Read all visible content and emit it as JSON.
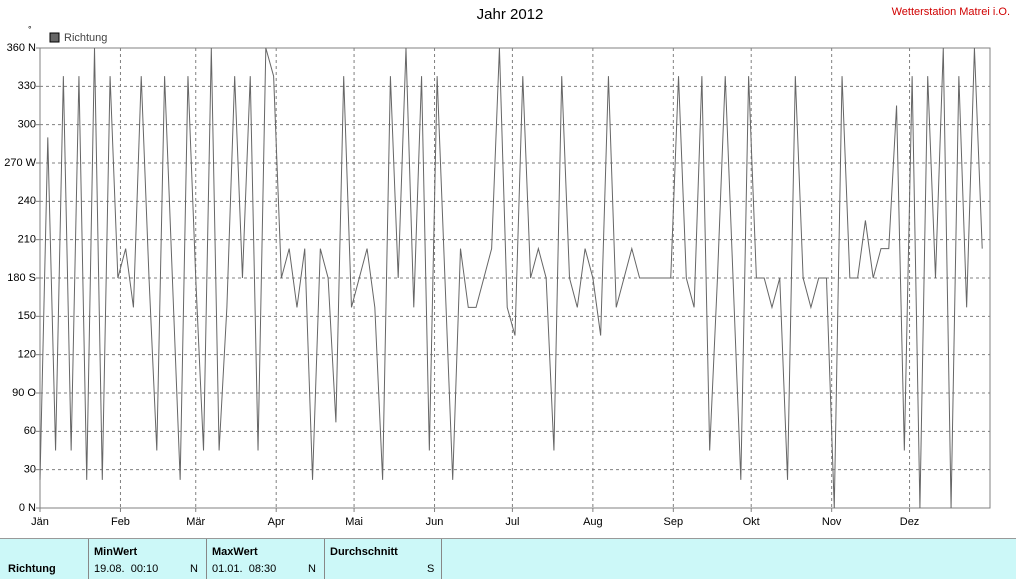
{
  "chart_data": {
    "type": "line",
    "title": "Jahr 2012",
    "station": "Wetterstation Matrei i.O.",
    "y_unit": "°",
    "legend": "top-left",
    "grid": true,
    "xlim": [
      0,
      366
    ],
    "xticks": [
      {
        "value": 0,
        "label": "Jän"
      },
      {
        "value": 31,
        "label": "Feb"
      },
      {
        "value": 60,
        "label": "Mär"
      },
      {
        "value": 91,
        "label": "Apr"
      },
      {
        "value": 121,
        "label": "Mai"
      },
      {
        "value": 152,
        "label": "Jun"
      },
      {
        "value": 182,
        "label": "Jul"
      },
      {
        "value": 213,
        "label": "Aug"
      },
      {
        "value": 244,
        "label": "Sep"
      },
      {
        "value": 274,
        "label": "Okt"
      },
      {
        "value": 305,
        "label": "Nov"
      },
      {
        "value": 335,
        "label": "Dez"
      }
    ],
    "ylim": [
      0,
      360
    ],
    "yticks": [
      {
        "value": 0,
        "label": "0 N"
      },
      30,
      60,
      {
        "value": 90,
        "label": "90 O"
      },
      120,
      150,
      {
        "value": 180,
        "label": "180 S"
      },
      210,
      240,
      {
        "value": 270,
        "label": "270 W"
      },
      300,
      330,
      {
        "value": 360,
        "label": "360 N"
      }
    ],
    "x": [
      0,
      3,
      6,
      9,
      12,
      15,
      18,
      21,
      24,
      27,
      30,
      33,
      36,
      39,
      42,
      45,
      48,
      51,
      54,
      57,
      60,
      63,
      66,
      69,
      72,
      75,
      78,
      81,
      84,
      87,
      90,
      93,
      96,
      99,
      102,
      105,
      108,
      111,
      114,
      117,
      120,
      123,
      126,
      129,
      132,
      135,
      138,
      141,
      144,
      147,
      150,
      153,
      156,
      159,
      162,
      165,
      168,
      171,
      174,
      177,
      180,
      183,
      186,
      189,
      192,
      195,
      198,
      201,
      204,
      207,
      210,
      213,
      216,
      219,
      222,
      225,
      228,
      231,
      234,
      237,
      240,
      243,
      246,
      249,
      252,
      255,
      258,
      261,
      264,
      267,
      270,
      273,
      276,
      279,
      282,
      285,
      288,
      291,
      294,
      297,
      300,
      303,
      306,
      309,
      312,
      315,
      318,
      321,
      324,
      327,
      330,
      333,
      336,
      339,
      342,
      345,
      348,
      351,
      354,
      357,
      360,
      363
    ],
    "series": [
      {
        "name": "Richtung",
        "color": "#666666",
        "values": [
          22,
          290,
          45,
          338,
          45,
          338,
          22,
          360,
          22,
          338,
          180,
          203,
          157,
          338,
          180,
          45,
          338,
          180,
          22,
          338,
          180,
          45,
          360,
          45,
          157,
          338,
          180,
          338,
          45,
          360,
          338,
          180,
          203,
          157,
          203,
          22,
          203,
          180,
          67,
          338,
          157,
          180,
          203,
          157,
          22,
          338,
          180,
          360,
          157,
          338,
          45,
          338,
          180,
          22,
          203,
          157,
          157,
          180,
          203,
          360,
          157,
          135,
          338,
          180,
          203,
          180,
          45,
          338,
          180,
          157,
          203,
          180,
          135,
          338,
          157,
          180,
          203,
          180,
          180,
          180,
          180,
          180,
          338,
          180,
          157,
          338,
          45,
          180,
          338,
          180,
          22,
          338,
          180,
          180,
          157,
          180,
          22,
          338,
          180,
          157,
          180,
          180,
          0,
          338,
          180,
          180,
          225,
          180,
          203,
          203,
          315,
          45,
          338,
          0,
          338,
          180,
          360,
          0,
          338,
          157,
          360,
          203
        ]
      }
    ]
  },
  "summary": {
    "row_label": "Richtung",
    "columns": [
      {
        "header": "MinWert",
        "time": "19.08.  00:10",
        "dir": "N"
      },
      {
        "header": "MaxWert",
        "time": "01.01.  08:30",
        "dir": "N"
      },
      {
        "header": "Durchschnitt",
        "dir": "S"
      }
    ]
  }
}
